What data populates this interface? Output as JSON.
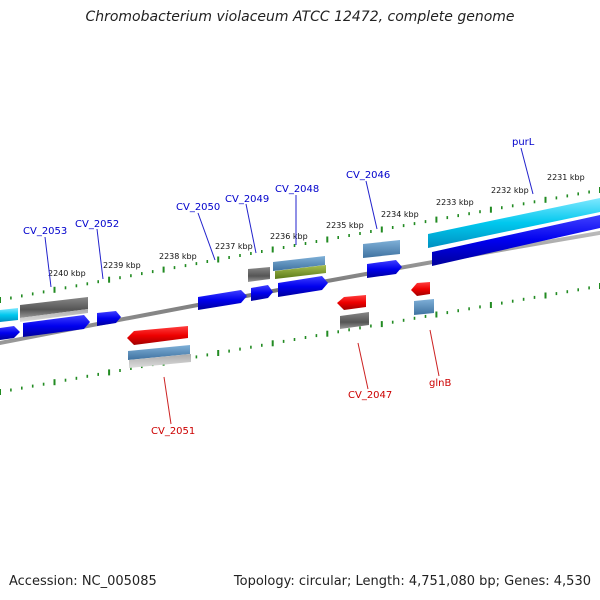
{
  "title": "Chromobacterium violaceum ATCC 12472, complete genome",
  "footer": {
    "accession": "Accession: NC_005085",
    "summary": "Topology: circular; Length: 4,751,080 bp; Genes: 4,530"
  },
  "colors": {
    "forward_gene": "#0000ee",
    "reverse_gene": "#ee0000",
    "backbone": "#888888",
    "ticks": "#228b22",
    "cds_grey": "#555555",
    "cds_steelblue": "#4682b4",
    "cds_cyan": "#00c8ee",
    "cds_olive": "#6b8e23",
    "label_forward": "#0000cc",
    "label_reverse": "#cc0000"
  },
  "scale_labels": [
    "2231 kbp",
    "2232 kbp",
    "2233 kbp",
    "2234 kbp",
    "2235 kbp",
    "2236 kbp",
    "2237 kbp",
    "2238 kbp",
    "2239 kbp",
    "2240 kbp"
  ],
  "genes_forward": [
    "purL",
    "CV_2046",
    "CV_2048",
    "CV_2049",
    "CV_2050",
    "CV_2052",
    "CV_2053"
  ],
  "genes_reverse": [
    "glnB",
    "CV_2047",
    "CV_2051"
  ]
}
